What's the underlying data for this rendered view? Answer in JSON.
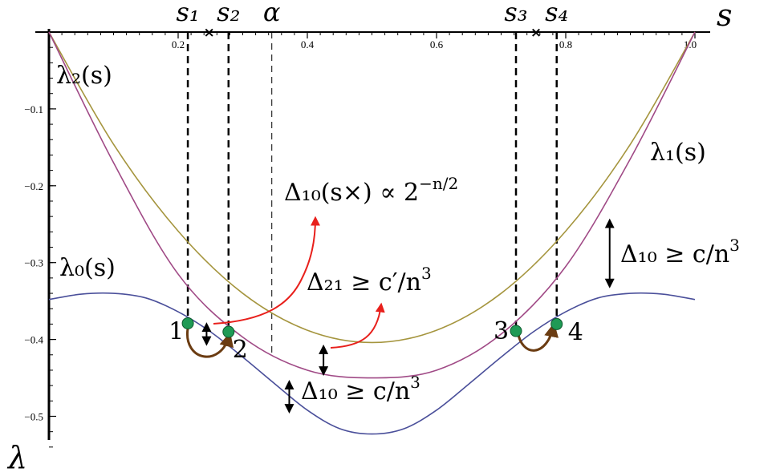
{
  "chart_data": {
    "type": "line",
    "xlim": [
      0,
      1.0
    ],
    "ylim": [
      -0.55,
      0
    ],
    "x_ticks": [
      0.2,
      0.4,
      0.6,
      0.8,
      1.0
    ],
    "x_tick_labels": [
      "0.2",
      "0.4",
      "0.6",
      "0.8",
      "1.0"
    ],
    "y_ticks": [
      -0.1,
      -0.2,
      -0.3,
      -0.4,
      -0.5
    ],
    "y_tick_labels": [
      "−0.1",
      "−0.2",
      "−0.3",
      "−0.4",
      "−0.5"
    ],
    "xlabel": "s",
    "ylabel": "λ",
    "colors": {
      "lambda0": "#4a4f9a",
      "lambda1": "#a04a86",
      "lambda2": "#a5953e",
      "arrow_red": "#e8201c",
      "arrow_brown": "#6b3c12",
      "marker": "#1f9a55"
    },
    "series": [
      {
        "name": "λ₂(s)",
        "color": "#a5953e",
        "x": [
          0,
          0.1,
          0.2,
          0.3,
          0.4,
          0.5,
          0.6,
          0.7,
          0.8,
          0.9,
          1.0
        ],
        "values": [
          0,
          -0.146,
          -0.259,
          -0.34,
          -0.388,
          -0.404,
          -0.388,
          -0.34,
          -0.259,
          -0.146,
          0
        ]
      },
      {
        "name": "λ₁(s)",
        "color": "#a04a86",
        "x": [
          0,
          0.1,
          0.2,
          0.3,
          0.4,
          0.5,
          0.6,
          0.7,
          0.8,
          0.9,
          1.0
        ],
        "values": [
          0,
          -0.17,
          -0.315,
          -0.397,
          -0.44,
          -0.45,
          -0.44,
          -0.393,
          -0.305,
          -0.165,
          0
        ]
      },
      {
        "name": "λ₀(s)",
        "color": "#4a4f9a",
        "x": [
          0,
          0.05,
          0.1,
          0.15,
          0.2,
          0.25,
          0.3,
          0.35,
          0.4,
          0.45,
          0.5,
          0.55,
          0.6,
          0.65,
          0.7,
          0.75,
          0.8,
          0.85,
          0.9,
          0.95,
          1.0
        ],
        "values": [
          -0.348,
          -0.341,
          -0.34,
          -0.346,
          -0.364,
          -0.39,
          -0.423,
          -0.458,
          -0.492,
          -0.516,
          -0.523,
          -0.516,
          -0.492,
          -0.458,
          -0.423,
          -0.39,
          -0.364,
          -0.346,
          -0.34,
          -0.341,
          -0.348
        ]
      }
    ],
    "vertical_lines": [
      {
        "label": "s₁",
        "x": 0.215,
        "style": "dashed-bold"
      },
      {
        "label": "s₂",
        "x": 0.278,
        "style": "dashed-bold"
      },
      {
        "label": "α",
        "x": 0.345,
        "style": "dashed-thin"
      },
      {
        "label": "s₃",
        "x": 0.723,
        "style": "dashed-bold"
      },
      {
        "label": "s₄",
        "x": 0.786,
        "style": "dashed-bold"
      }
    ],
    "crossings": [
      0.248,
      0.754
    ],
    "points": [
      {
        "label": "1",
        "x": 0.215,
        "y": -0.379
      },
      {
        "label": "2",
        "x": 0.278,
        "y": -0.39
      },
      {
        "label": "3",
        "x": 0.723,
        "y": -0.389
      },
      {
        "label": "4",
        "x": 0.786,
        "y": -0.38
      }
    ],
    "gap_arrows": [
      {
        "x": 0.244,
        "y1": -0.378,
        "y2": -0.408
      },
      {
        "x": 0.425,
        "y1": -0.407,
        "y2": -0.447
      },
      {
        "x": 0.372,
        "y1": -0.453,
        "y2": -0.496
      },
      {
        "x": 0.868,
        "y1": -0.243,
        "y2": -0.333
      }
    ],
    "annotations": {
      "lambda2": "λ₂(s)",
      "lambda1": "λ₁(s)",
      "lambda0": "λ₀(s)",
      "delta10_cross": "Δ₁₀(s×) ∝ 2",
      "delta10_cross_exp": "−n/2",
      "delta21": "Δ₂₁ ≥ c′/n",
      "delta21_exp": "3",
      "delta10_bottom": "Δ₁₀ ≥ c/n",
      "delta10_bottom_exp": "3",
      "delta10_right": "Δ₁₀ ≥ c/n",
      "delta10_right_exp": "3"
    }
  }
}
